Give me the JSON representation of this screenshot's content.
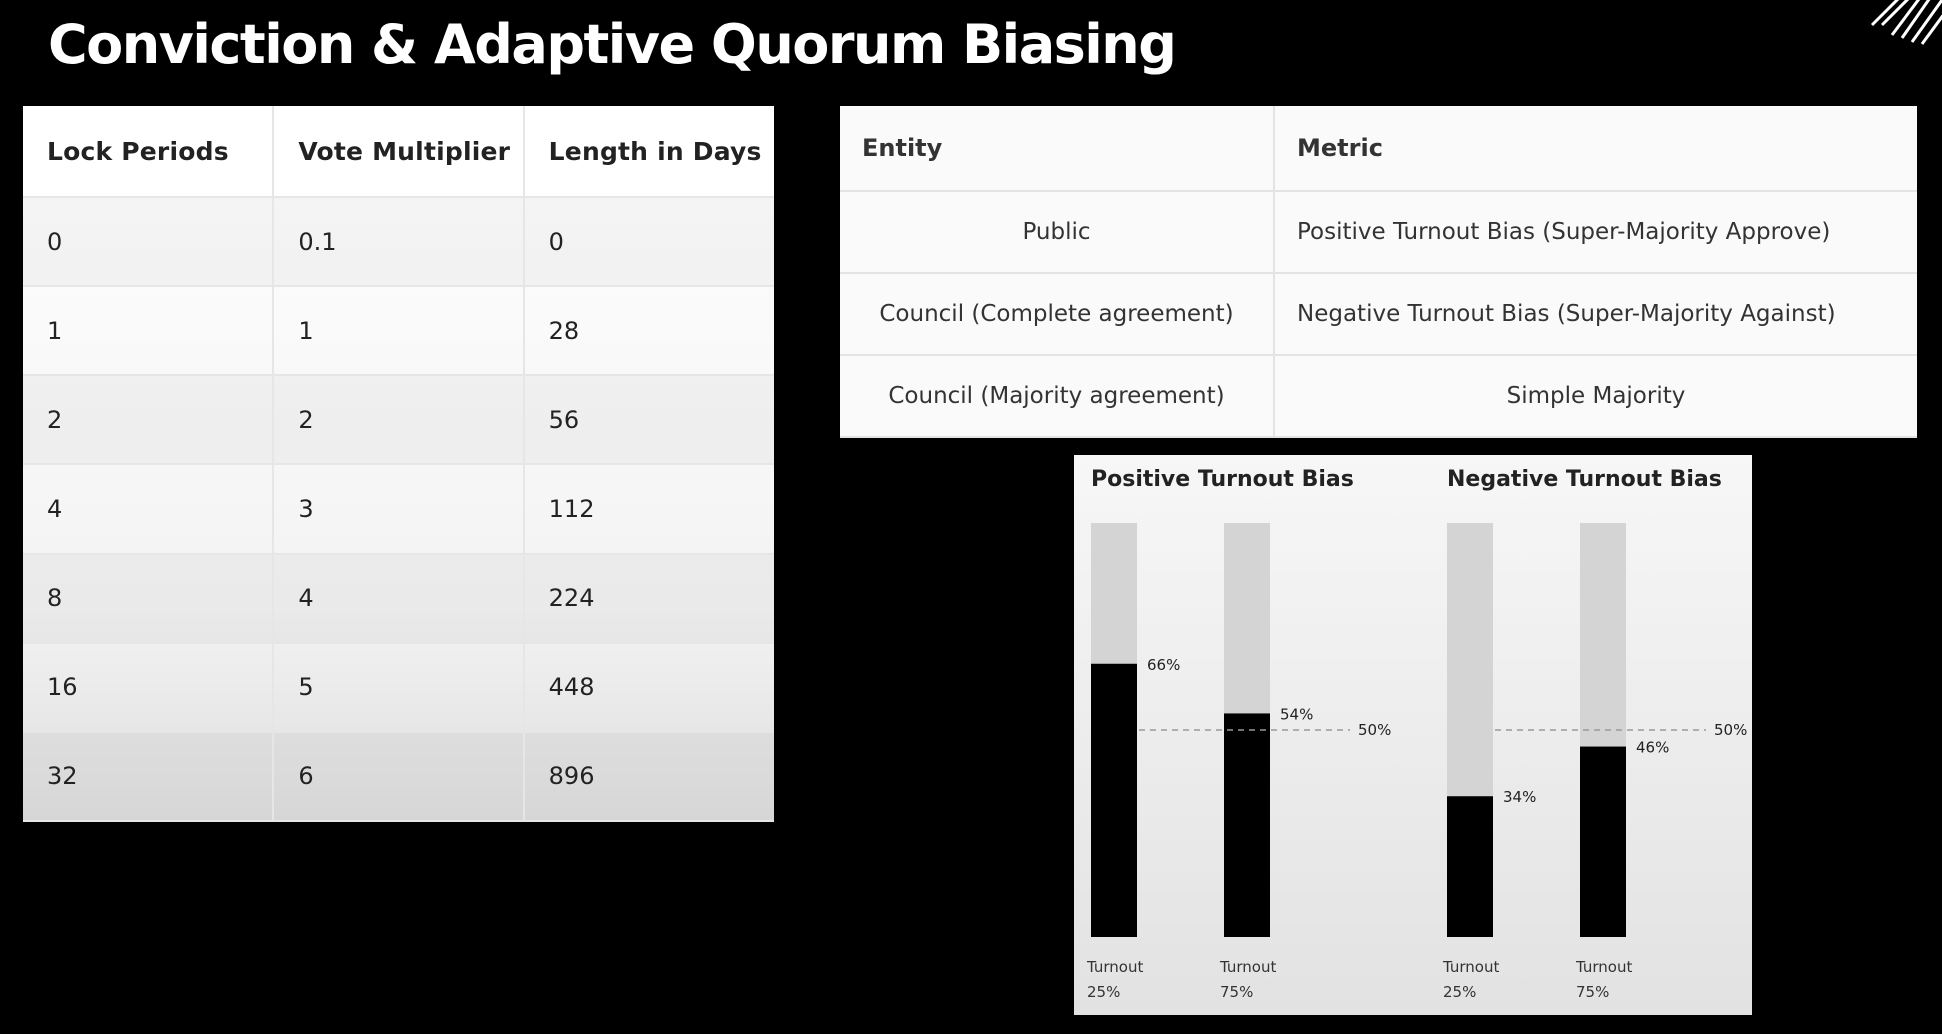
{
  "slide_title": "Conviction & Adaptive Quorum Biasing",
  "lock_table": {
    "headers": [
      "Lock Periods",
      "Vote Multiplier",
      "Length in Days"
    ],
    "rows": [
      [
        "0",
        "0.1",
        "0"
      ],
      [
        "1",
        "1",
        "28"
      ],
      [
        "2",
        "2",
        "56"
      ],
      [
        "4",
        "3",
        "112"
      ],
      [
        "8",
        "4",
        "224"
      ],
      [
        "16",
        "5",
        "448"
      ],
      [
        "32",
        "6",
        "896"
      ]
    ]
  },
  "entity_table": {
    "headers": [
      "Entity",
      "Metric"
    ],
    "rows": [
      [
        "Public",
        "Positive Turnout Bias (Super-Majority Approve)"
      ],
      [
        "Council (Complete agreement)",
        "Negative Turnout Bias (Super-Majority Against)"
      ],
      [
        "Council (Majority agreement)",
        "Simple Majority"
      ]
    ]
  },
  "chart_data": {
    "type": "bar",
    "groups": [
      {
        "title": "Positive Turnout Bias",
        "bars": [
          {
            "label_line1": "Turnout",
            "label_line2": "25%",
            "value": 66,
            "value_label": "66%"
          },
          {
            "label_line1": "Turnout",
            "label_line2": "75%",
            "value": 54,
            "value_label": "54%"
          }
        ],
        "threshold": 50,
        "threshold_label": "50%"
      },
      {
        "title": "Negative Turnout Bias",
        "bars": [
          {
            "label_line1": "Turnout",
            "label_line2": "25%",
            "value": 34,
            "value_label": "34%"
          },
          {
            "label_line1": "Turnout",
            "label_line2": "75%",
            "value": 46,
            "value_label": "46%"
          }
        ],
        "threshold": 50,
        "threshold_label": "50%"
      }
    ],
    "ylim": [
      0,
      100
    ],
    "colors": {
      "fill": "#000000",
      "track": "#d4d4d4",
      "threshold": "#999999"
    }
  }
}
